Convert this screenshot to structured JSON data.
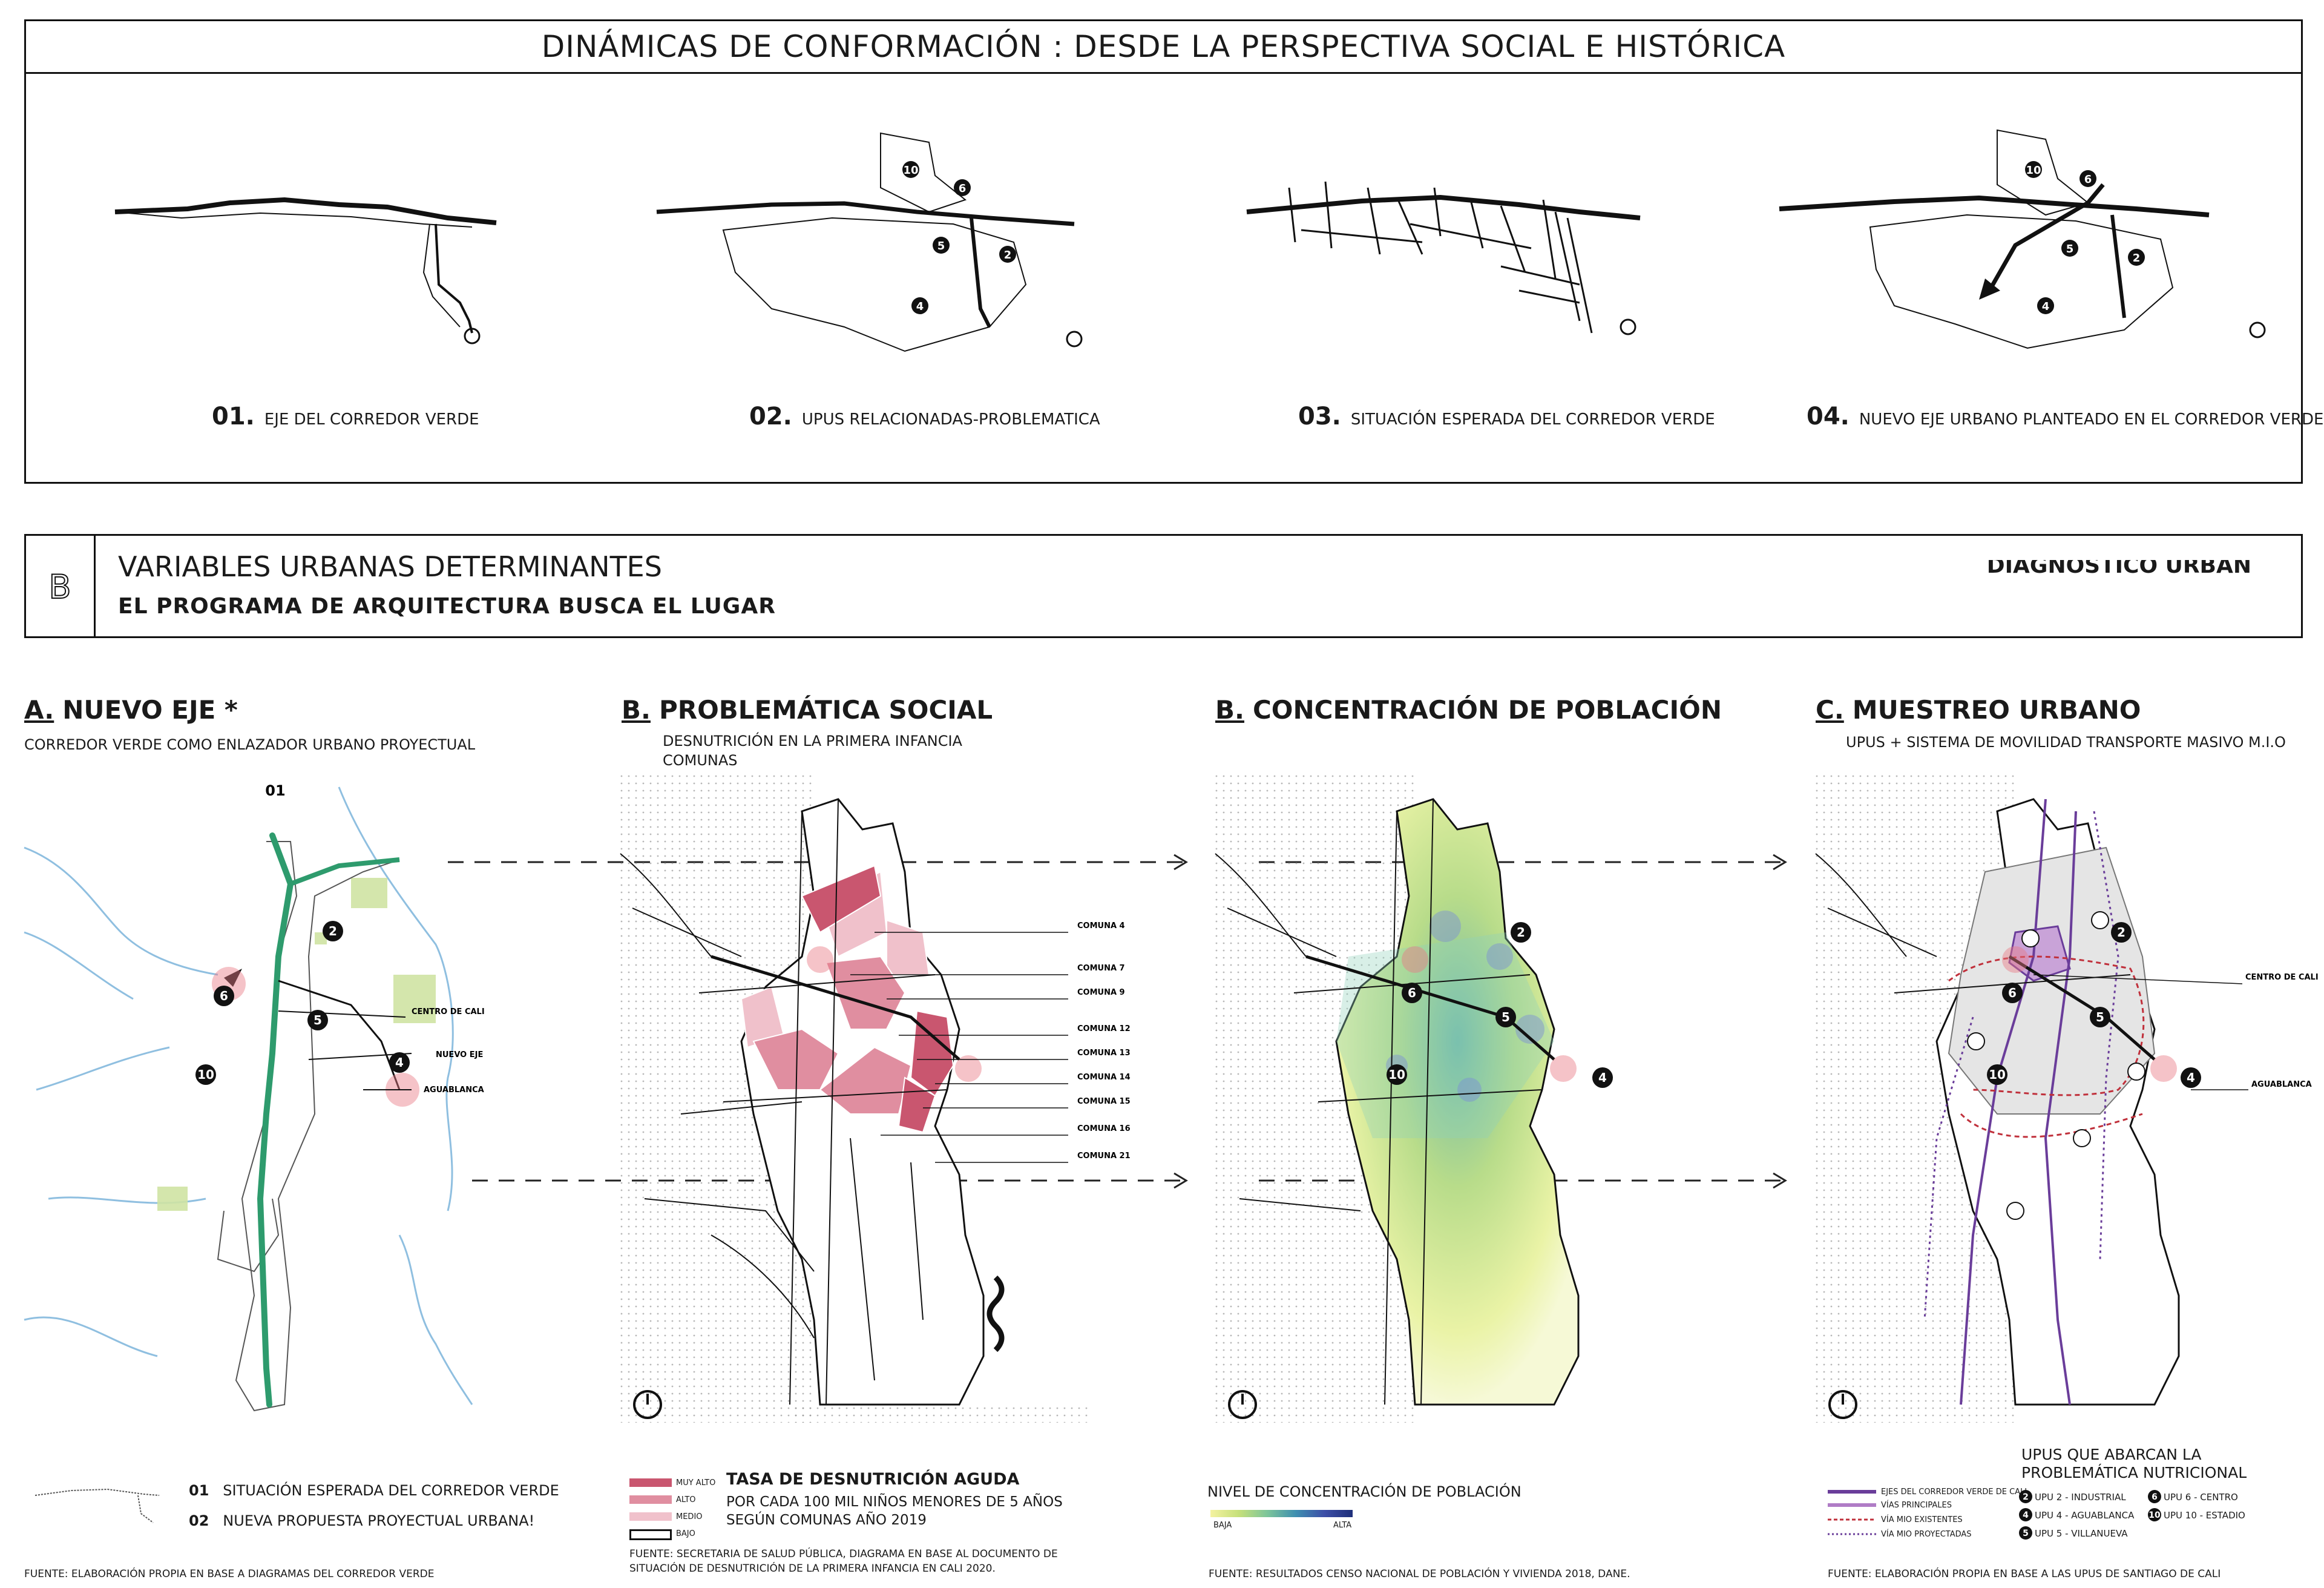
{
  "top": {
    "title": "DINÁMICAS DE CONFORMACIÓN : DESDE LA PERSPECTIVA SOCIAL E HISTÓRICA",
    "steps": [
      {
        "num": "01.",
        "label": "EJE DEL CORREDOR VERDE"
      },
      {
        "num": "02.",
        "label": "UPUS RELACIONADAS-PROBLEMATICA"
      },
      {
        "num": "03.",
        "label": "SITUACIÓN ESPERADA DEL CORREDOR VERDE"
      },
      {
        "num": "04.",
        "label": "NUEVO EJE URBANO PLANTEADO EN EL CORREDOR VERDE"
      }
    ],
    "upu_numbers": [
      "10",
      "6",
      "5",
      "2",
      "4"
    ]
  },
  "section": {
    "icon_letter": "B",
    "title": "VARIABLES URBANAS DETERMINANTES",
    "subtitle": "EL PROGRAMA DE ARQUITECTURA BUSCA EL LUGAR",
    "right_tag": "DIAGNOSTICO URBAN"
  },
  "panels": {
    "a": {
      "letter": "A.",
      "title": "NUEVO EJE *",
      "subtitle": "CORREDOR VERDE COMO ENLAZADOR URBANO PROYECTUAL",
      "map_tag": "01",
      "labels": {
        "centro": "CENTRO DE CALI",
        "nuevo_eje": "NUEVO EJE",
        "aguablanca": "AGUABLANCA"
      },
      "legend": [
        {
          "num": "01",
          "text": "SITUACIÓN ESPERADA DEL CORREDOR VERDE"
        },
        {
          "num": "02",
          "text": "NUEVA PROPUESTA PROYECTUAL URBANA!"
        }
      ],
      "source": "FUENTE: ELABORACIÓN PROPIA EN BASE A DIAGRAMAS DEL CORREDOR VERDE"
    },
    "b1": {
      "letter": "B.",
      "title": "PROBLEMÁTICA SOCIAL",
      "subtitle_1": "DESNUTRICIÓN EN LA PRIMERA INFANCIA",
      "subtitle_2": "COMUNAS",
      "comunas": [
        "COMUNA 4",
        "COMUNA 7",
        "COMUNA 9",
        "COMUNA 12",
        "COMUNA 13",
        "COMUNA 14",
        "COMUNA 15",
        "COMUNA 16",
        "COMUNA 21"
      ],
      "legend_levels": [
        "MUY ALTO",
        "ALTO",
        "MEDIO",
        "BAJO"
      ],
      "legend_colors": [
        "#c9566f",
        "#e08ea0",
        "#f0c1cb",
        "#ffffff"
      ],
      "legend_title": "TASA DE DESNUTRICIÓN AGUDA",
      "legend_sub_1": "POR CADA 100 MIL NIÑOS MENORES DE 5 AÑOS",
      "legend_sub_2": "SEGÚN COMUNAS AÑO 2019",
      "source_1": "FUENTE: SECRETARIA DE SALUD PÚBLICA, DIAGRAMA EN BASE AL DOCUMENTO DE",
      "source_2": "SITUACIÓN DE DESNUTRICIÓN DE LA PRIMERA INFANCIA EN CALI 2020."
    },
    "b2": {
      "letter": "B.",
      "title": "CONCENTRACIÓN DE POBLACIÓN",
      "legend_title": "NIVEL DE CONCENTRACIÓN DE  POBLACIÓN",
      "low": "BAJA",
      "high": "ALTA",
      "source": "FUENTE: RESULTADOS CENSO NACIONAL DE POBLACIÓN Y VIVIENDA 2018, DANE."
    },
    "c": {
      "letter": "C.",
      "title": "MUESTREO URBANO",
      "subtitle": "UPUS + SISTEMA DE MOVILIDAD TRANSPORTE MASIVO M.I.O",
      "labels": {
        "centro": "CENTRO DE CALI",
        "aguablanca": "AGUABLANCA"
      },
      "legend_lines": [
        "EJES DEL CORREDOR VERDE DE CALI",
        "VÍAS PRINCIPALES",
        "VÍA MIO EXISTENTES",
        "VÍA MIO PROYECTADAS"
      ],
      "upus_title_1": "UPUS QUE ABARCAN LA",
      "upus_title_2": "PROBLEMÁTICA NUTRICIONAL",
      "upus": [
        {
          "n": "2",
          "t": "UPU 2 - INDUSTRIAL"
        },
        {
          "n": "6",
          "t": "UPU 6 - CENTRO"
        },
        {
          "n": "4",
          "t": "UPU 4 - AGUABLANCA"
        },
        {
          "n": "10",
          "t": "UPU 10 - ESTADIO"
        },
        {
          "n": "5",
          "t": "UPU 5 - VILLANUEVA"
        }
      ],
      "source": "FUENTE: ELABORACIÓN PROPIA EN BASE A LAS UPUS DE SANTIAGO DE CALI"
    }
  },
  "colors": {
    "ink": "#111111",
    "green": "#2e9b6d",
    "pink": "#c9566f",
    "purple": "#6a3d9a",
    "red_dash": "#c0303b",
    "water": "#8fbfe0"
  }
}
